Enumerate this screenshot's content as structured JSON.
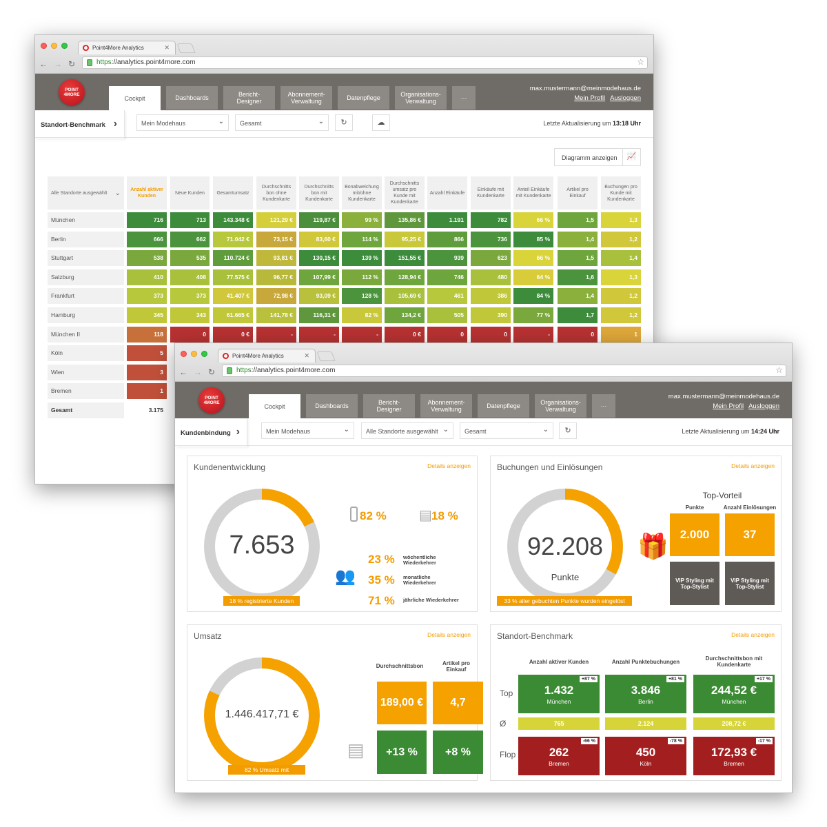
{
  "browser": {
    "tab_title": "Point4More Analytics",
    "url_scheme": "https",
    "url_rest": "://analytics.point4more.com"
  },
  "app": {
    "logo_line1": "POINT",
    "logo_line2": "4MORE",
    "nav": [
      "Cockpit",
      "Dashboards",
      "Bericht-\nDesigner",
      "Abonnement-\nVerwaltung",
      "Datenpflege",
      "Organisations-\nVerwaltung",
      "···"
    ],
    "user_email": "max.mustermann@meinmodehaus.de",
    "profile_link": "Mein Profil",
    "logout_link": "Ausloggen"
  },
  "w1": {
    "crumb": "Standort-Benchmark",
    "select_company": "Mein Modehaus",
    "select_period": "Gesamt",
    "update_label": "Letzte Aktualisierung um",
    "update_time": "13:18 Uhr",
    "diagram_button": "Diagramm anzeigen",
    "table": {
      "location_filter": "Alle Standorte ausgewählt",
      "columns": [
        "Anzahl aktiver Kunden",
        "Neue Kunden",
        "Gesamtumsatz",
        "Durchschnitts bon ohne Kundenkarte",
        "Durchschnitts bon mit Kundenkarte",
        "Bonabweichung mit/ohne Kundenkarte",
        "Durchschnitts umsatz pro Kunde mit Kundenkarte",
        "Anzahl Einkäufe",
        "Einkäufe mit Kundenkarte",
        "Anteil Einkäufe mit Kundenkarte",
        "Artikel pro Einkauf",
        "Buchungen pro Kunde mit Kundenkarte"
      ],
      "rows": [
        {
          "name": "München",
          "values": [
            "716",
            "713",
            "143.348 €",
            "121,29 €",
            "119,87 €",
            "99 %",
            "135,86 €",
            "1.191",
            "782",
            "66 %",
            "1,5",
            "1,3"
          ],
          "colors": [
            "#3c8c3c",
            "#3c8c3c",
            "#3c8c3c",
            "#d4cf3a",
            "#4b8f3c",
            "#8cb03c",
            "#5f983c",
            "#3c8c3c",
            "#3c8c3c",
            "#d9d43a",
            "#6ea53c",
            "#d9d43a"
          ]
        },
        {
          "name": "Berlin",
          "values": [
            "666",
            "662",
            "71.042 €",
            "73,15 €",
            "83,60 €",
            "114 %",
            "95,25 €",
            "866",
            "736",
            "85 %",
            "1,4",
            "1,2"
          ],
          "colors": [
            "#4b933c",
            "#4b933c",
            "#b8c83c",
            "#c8a83a",
            "#d0c83a",
            "#6ea53c",
            "#c8c83a",
            "#5f9c3c",
            "#4b933c",
            "#3c8c3c",
            "#8cb03c",
            "#d0c83a"
          ]
        },
        {
          "name": "Stuttgart",
          "values": [
            "538",
            "535",
            "110.724 €",
            "93,81 €",
            "130,15 €",
            "139 %",
            "151,55 €",
            "939",
            "623",
            "66 %",
            "1,5",
            "1,4"
          ],
          "colors": [
            "#7aa83c",
            "#7aa83c",
            "#5f9c3c",
            "#c0b83a",
            "#3c8c3c",
            "#3c8c3c",
            "#3c8c3c",
            "#4b933c",
            "#7aa83c",
            "#d9d43a",
            "#6ea53c",
            "#a8c03c"
          ]
        },
        {
          "name": "Salzburg",
          "values": [
            "410",
            "408",
            "77.575 €",
            "96,77 €",
            "107,99 €",
            "112 %",
            "128,94 €",
            "746",
            "480",
            "64 %",
            "1,6",
            "1,3"
          ],
          "colors": [
            "#a8c03c",
            "#a8c03c",
            "#a8c03c",
            "#b8b83a",
            "#6ea53c",
            "#7aa83c",
            "#6ea53c",
            "#6ea53c",
            "#a8c03c",
            "#d9cc3a",
            "#4b933c",
            "#d9d43a"
          ]
        },
        {
          "name": "Frankfurt",
          "values": [
            "373",
            "373",
            "41.407 €",
            "72,98 €",
            "93,09 €",
            "128 %",
            "105,69 €",
            "461",
            "386",
            "84 %",
            "1,4",
            "1,2"
          ],
          "colors": [
            "#b8c83c",
            "#b8c83c",
            "#d0c83a",
            "#c8a83a",
            "#b8c03c",
            "#4b933c",
            "#a8c03c",
            "#b8c83c",
            "#c0c83a",
            "#3c8c3c",
            "#8cb03c",
            "#d0c83a"
          ]
        },
        {
          "name": "Hamburg",
          "values": [
            "345",
            "343",
            "61.665 €",
            "141,78 €",
            "116,31 €",
            "82 %",
            "134,2 €",
            "505",
            "390",
            "77 %",
            "1,7",
            "1,2"
          ],
          "colors": [
            "#c0c83a",
            "#c0c83a",
            "#c0c83a",
            "#b8c03c",
            "#5f983c",
            "#c8c83a",
            "#6ea53c",
            "#a8c03c",
            "#c0c83a",
            "#7aa83c",
            "#3c8c3c",
            "#d0c83a"
          ]
        },
        {
          "name": "München II",
          "values": [
            "118",
            "0",
            "0 €",
            "-",
            "-",
            "-",
            "0 €",
            "0",
            "0",
            "-",
            "0",
            "1"
          ],
          "colors": [
            "#c8703a",
            "#b83232",
            "#b83232",
            "#b83232",
            "#b83232",
            "#b83232",
            "#b83232",
            "#b83232",
            "#b83232",
            "#b83232",
            "#b83232",
            "#e0a83a"
          ]
        },
        {
          "name": "Köln",
          "values": [
            "5"
          ],
          "colors": [
            "#c0503a"
          ]
        },
        {
          "name": "Wien",
          "values": [
            "3"
          ],
          "colors": [
            "#c0503a"
          ]
        },
        {
          "name": "Bremen",
          "values": [
            "1"
          ],
          "colors": [
            "#c0503a"
          ]
        }
      ],
      "total_label": "Gesamt",
      "total_value": "3.175"
    }
  },
  "w2": {
    "crumb": "Kundenbindung",
    "select_company": "Mein Modehaus",
    "select_locations": "Alle Standorte ausgewählt",
    "select_period": "Gesamt",
    "update_label": "Letzte Aktualisierung um",
    "update_time": "14:24 Uhr",
    "details": "Details anzeigen",
    "kunden": {
      "title": "Kundenentwicklung",
      "value": "7.653",
      "banner": "18 % registrierte Kunden",
      "ring_fraction": 0.18,
      "mobile_pct": "82 %",
      "card_pct": "18 %",
      "weekly_pct": "23 %",
      "weekly_lbl": "wöchentliche\nWiederkehrer",
      "monthly_pct": "35 %",
      "monthly_lbl": "monatliche\nWiederkehrer",
      "yearly_pct": "71 %",
      "yearly_lbl": "jährliche Wiederkehrer"
    },
    "buchungen": {
      "title": "Buchungen und Einlösungen",
      "value": "92.208",
      "unit": "Punkte",
      "banner": "33 % aller gebuchten Punkte wurden eingelöst",
      "ring_fraction": 0.33,
      "top_title": "Top-Vorteil",
      "col1": "Punkte",
      "col2": "Anzahl Einlösungen",
      "points": "2.000",
      "redemptions": "37",
      "vip1": "VIP Styling mit Top-Stylist",
      "vip2": "VIP Styling mit Top-Stylist"
    },
    "umsatz": {
      "title": "Umsatz",
      "value": "1.446.417,71 €",
      "banner": "82 % Umsatz mit Kundenkarte",
      "ring_fraction": 0.82,
      "col1": "Durchschnittsbon",
      "col2": "Artikel pro\nEinkauf",
      "bon": "189,00 €",
      "artikel": "4,7",
      "bon_delta": "+13 %",
      "artikel_delta": "+8 %"
    },
    "benchmark": {
      "title": "Standort-Benchmark",
      "col1": "Anzahl aktiver Kunden",
      "col2": "Anzahl Punktebuchungen",
      "col3": "Durchschnittsbon mit\nKundenkarte",
      "top_label": "Top",
      "avg_label": "Ø",
      "flop_label": "Flop",
      "top": [
        {
          "v": "1.432",
          "s": "München",
          "b": "+87 %"
        },
        {
          "v": "3.846",
          "s": "Berlin",
          "b": "+81 %"
        },
        {
          "v": "244,52 €",
          "s": "München",
          "b": "+17 %"
        }
      ],
      "avg": [
        "765",
        "2.124",
        "208,72 €"
      ],
      "flop": [
        {
          "v": "262",
          "s": "Bremen",
          "b": "-66 %"
        },
        {
          "v": "450",
          "s": "Köln",
          "b": "-78 %"
        },
        {
          "v": "172,93 €",
          "s": "Bremen",
          "b": "-17 %"
        }
      ]
    },
    "colors": {
      "orange": "#f5a100",
      "green": "#3b8a34",
      "red": "#a31f1f",
      "yellowgreen": "#d7d43a",
      "grey": "#5e5a56"
    }
  }
}
